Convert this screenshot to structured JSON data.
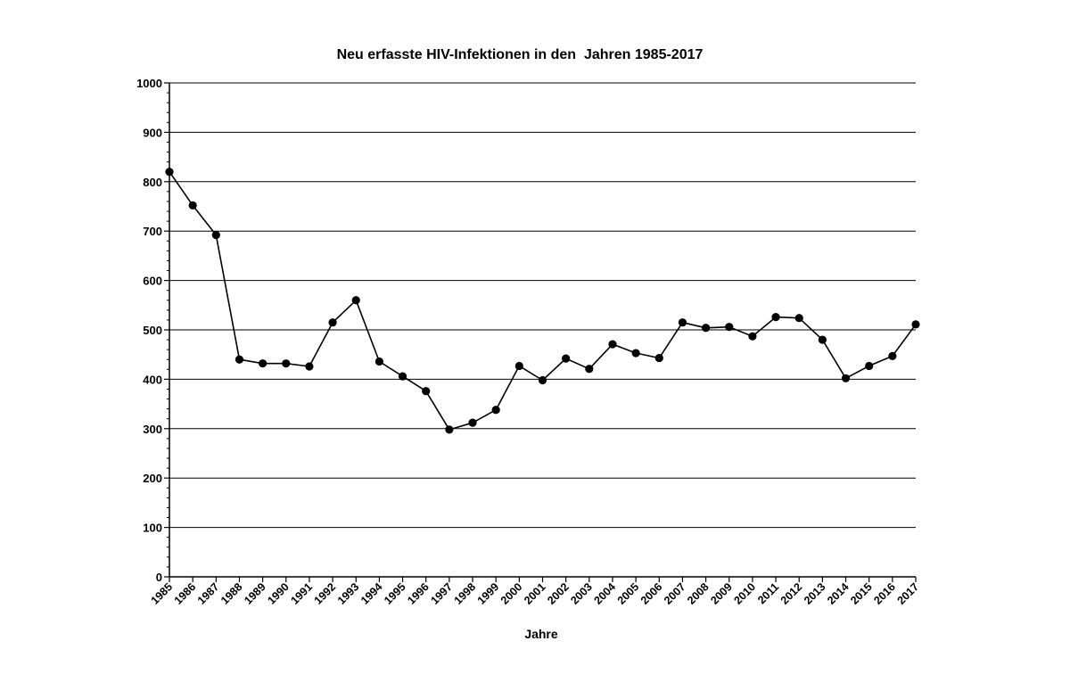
{
  "chart_data": {
    "type": "line",
    "title": "Neu erfasste HIV-Infektionen in den  Jahren 1985-2017",
    "xlabel": "Jahre",
    "ylabel": "",
    "ylim": [
      0,
      1000
    ],
    "yticks": [
      "0",
      "100",
      "200",
      "300",
      "400",
      "500",
      "600",
      "700",
      "800",
      "900",
      "1000"
    ],
    "grid": true,
    "categories": [
      "1985",
      "1986",
      "1987",
      "1988",
      "1989",
      "1990",
      "1991",
      "1992",
      "1993",
      "1994",
      "1995",
      "1996",
      "1997",
      "1998",
      "1999",
      "2000",
      "2001",
      "2002",
      "2003",
      "2004",
      "2005",
      "2006",
      "2007",
      "2008",
      "2009",
      "2010",
      "2011",
      "2012",
      "2013",
      "2014",
      "2015",
      "2016",
      "2017"
    ],
    "series": [
      {
        "values": [
          820,
          752,
          692,
          440,
          432,
          432,
          426,
          515,
          560,
          436,
          406,
          376,
          298,
          312,
          338,
          427,
          398,
          442,
          421,
          471,
          453,
          443,
          515,
          504,
          506,
          487,
          526,
          524,
          480,
          402,
          427,
          447,
          511
        ],
        "color": "#000000"
      }
    ]
  }
}
